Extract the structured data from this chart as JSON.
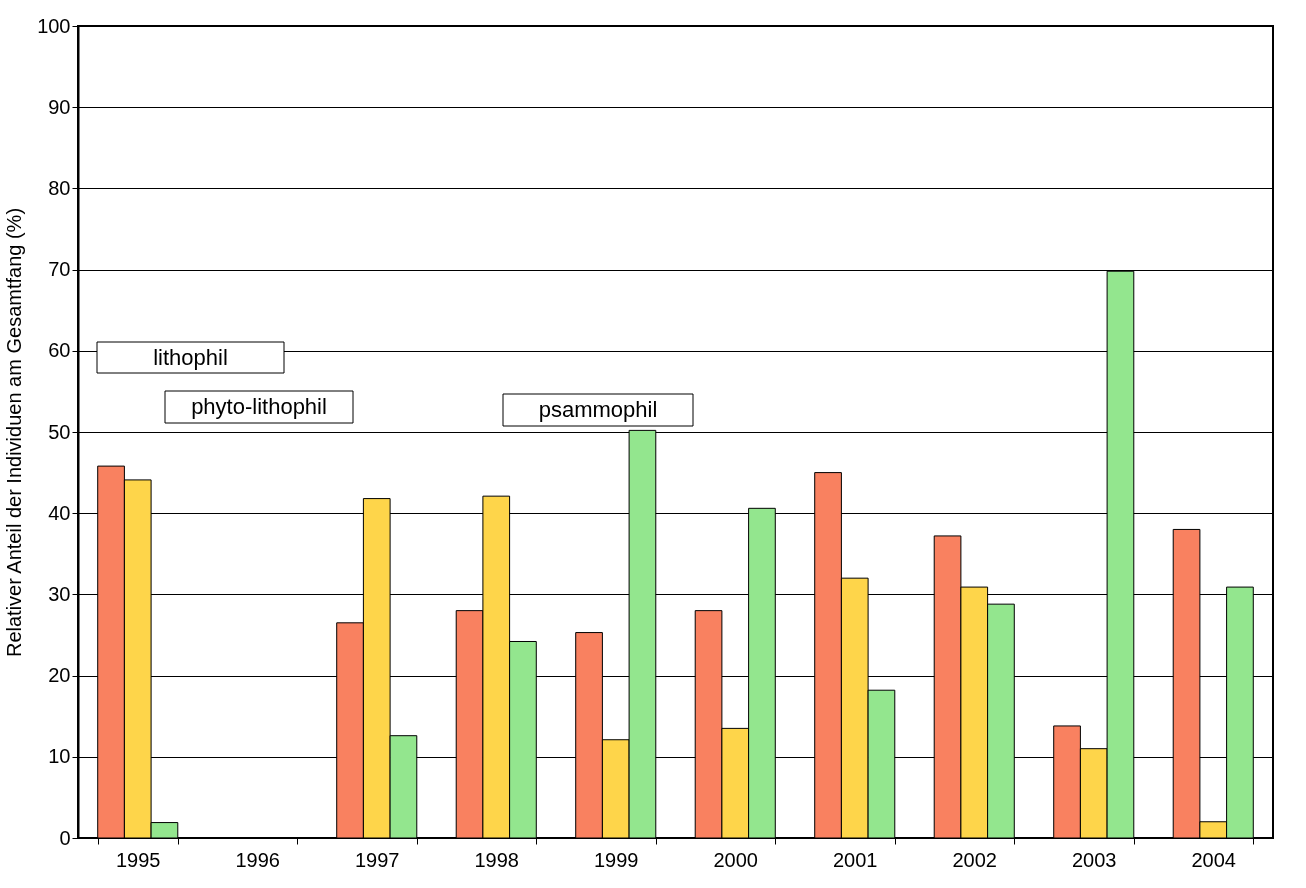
{
  "chart_data": {
    "type": "bar",
    "ylabel": "Relativer Anteil der Individuen am Gesamtfang (%)",
    "categories": [
      "1995",
      "1996",
      "1997",
      "1998",
      "1999",
      "2000",
      "2001",
      "2002",
      "2003",
      "2004"
    ],
    "series": [
      {
        "name": "lithophil",
        "color": "#f98160",
        "values": [
          45.8,
          null,
          26.5,
          28.0,
          25.3,
          28.0,
          45.0,
          37.2,
          13.8,
          38.0
        ]
      },
      {
        "name": "phyto-lithophil",
        "color": "#fed54a",
        "values": [
          44.1,
          null,
          41.8,
          42.1,
          12.1,
          13.5,
          32.0,
          30.9,
          11.0,
          2.0
        ]
      },
      {
        "name": "psammophil",
        "color": "#93e68e",
        "values": [
          1.9,
          null,
          12.6,
          24.2,
          50.2,
          40.6,
          18.2,
          28.8,
          69.8,
          30.9
        ]
      }
    ],
    "ylim": [
      0,
      100
    ],
    "yticks": [
      0,
      10,
      20,
      30,
      40,
      50,
      60,
      70,
      80,
      90,
      100
    ],
    "grid": "y",
    "legend": false
  }
}
